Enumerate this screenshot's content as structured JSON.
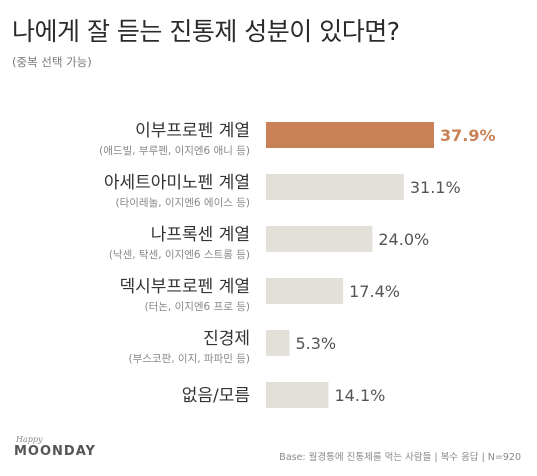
{
  "title": "나에게 잘 듣는 진통제 성분이 있다면?",
  "subtitle": "(중복 선택 가능)",
  "footer": {
    "logo_script": "Happy",
    "logo_main": "MOONDAY",
    "note": "Base: 월경통에 진통제를 먹는 사람들 | 복수 응답 | N=920"
  },
  "colors": {
    "highlight": "#c98257",
    "bar": "#e3e0da",
    "label": "#333333",
    "sublabel": "#888888",
    "value": "#555555"
  },
  "chart_data": {
    "type": "bar",
    "orientation": "horizontal",
    "unit": "%",
    "xlim": [
      0,
      40
    ],
    "grid": false,
    "categories": [
      {
        "label": "이부프로펜 계열",
        "sublabel": "(애드빌, 부루펜, 이지엔6 애니 등)",
        "value": 37.9,
        "display": "37.9%",
        "highlight": true
      },
      {
        "label": "아세트아미노펜 계열",
        "sublabel": "(타이레놀, 이지엔6 에이스 등)",
        "value": 31.1,
        "display": "31.1%",
        "highlight": false
      },
      {
        "label": "나프록센 계열",
        "sublabel": "(낙센, 탁센, 이지엔6 스트롱 등)",
        "value": 24.0,
        "display": "24.0%",
        "highlight": false
      },
      {
        "label": "덱시부프로펜 계열",
        "sublabel": "(터논, 이지엔6 프로 등)",
        "value": 17.4,
        "display": "17.4%",
        "highlight": false
      },
      {
        "label": "진경제",
        "sublabel": "(부스코판, 이지, 파파민 등)",
        "value": 5.3,
        "display": "5.3%",
        "highlight": false
      },
      {
        "label": "없음/모름",
        "sublabel": "",
        "value": 14.1,
        "display": "14.1%",
        "highlight": false
      }
    ]
  }
}
